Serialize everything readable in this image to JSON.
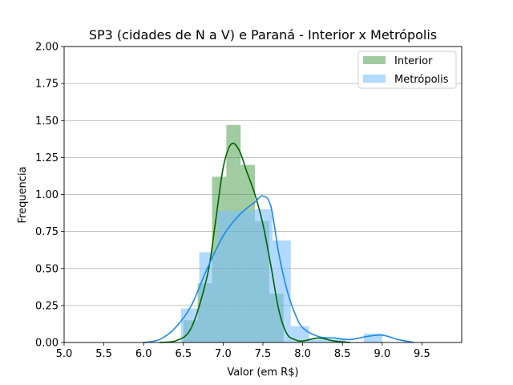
{
  "chart_data": {
    "type": "bar",
    "title": "SP3 (cidades de N a V) e Paraná - Interior x Metrópolis",
    "xlabel": "Valor (em R$)",
    "ylabel": "Frequencia",
    "xlim": [
      5.0,
      10.0
    ],
    "ylim": [
      0.0,
      2.0
    ],
    "xticks": [
      "5.0",
      "5.5",
      "6.0",
      "6.5",
      "7.0",
      "7.5",
      "8.0",
      "8.5",
      "9.0",
      "9.5"
    ],
    "yticks": [
      "0.00",
      "0.25",
      "0.50",
      "0.75",
      "1.00",
      "1.25",
      "1.50",
      "1.75",
      "2.00"
    ],
    "grid": "horizontal",
    "legend_position": "top-right",
    "series": [
      {
        "name": "Interior",
        "color": "#2e8b2e",
        "kde_color": "#006400",
        "histogram": [
          {
            "x0": 6.5,
            "x1": 6.68,
            "value": 0.15
          },
          {
            "x0": 6.68,
            "x1": 6.86,
            "value": 0.4
          },
          {
            "x0": 6.86,
            "x1": 7.04,
            "value": 1.12
          },
          {
            "x0": 7.04,
            "x1": 7.22,
            "value": 1.47
          },
          {
            "x0": 7.22,
            "x1": 7.4,
            "value": 1.2
          },
          {
            "x0": 7.4,
            "x1": 7.58,
            "value": 0.82
          },
          {
            "x0": 7.58,
            "x1": 7.76,
            "value": 0.33
          }
        ],
        "kde": [
          [
            6.2,
            0.0
          ],
          [
            6.4,
            0.01
          ],
          [
            6.6,
            0.1
          ],
          [
            6.8,
            0.45
          ],
          [
            6.9,
            0.8
          ],
          [
            7.0,
            1.18
          ],
          [
            7.1,
            1.34
          ],
          [
            7.2,
            1.3
          ],
          [
            7.3,
            1.15
          ],
          [
            7.4,
            1.0
          ],
          [
            7.5,
            0.8
          ],
          [
            7.6,
            0.52
          ],
          [
            7.7,
            0.22
          ],
          [
            7.8,
            0.06
          ],
          [
            7.9,
            0.02
          ],
          [
            8.0,
            0.01
          ],
          [
            8.2,
            0.03
          ],
          [
            8.4,
            0.01
          ],
          [
            8.6,
            0.0
          ]
        ]
      },
      {
        "name": "Metrópolis",
        "color": "#7fbfff",
        "kde_color": "#1e8ae8",
        "histogram": [
          {
            "x0": 6.47,
            "x1": 6.7,
            "value": 0.23
          },
          {
            "x0": 6.7,
            "x1": 6.93,
            "value": 0.61
          },
          {
            "x0": 6.93,
            "x1": 7.16,
            "value": 0.89
          },
          {
            "x0": 7.16,
            "x1": 7.39,
            "value": 0.89
          },
          {
            "x0": 7.39,
            "x1": 7.62,
            "value": 0.9
          },
          {
            "x0": 7.62,
            "x1": 7.85,
            "value": 0.69
          },
          {
            "x0": 7.85,
            "x1": 8.08,
            "value": 0.11
          },
          {
            "x0": 8.08,
            "x1": 8.31,
            "value": 0.02
          },
          {
            "x0": 8.31,
            "x1": 8.54,
            "value": 0.02
          },
          {
            "x0": 8.54,
            "x1": 8.77,
            "value": 0.0
          },
          {
            "x0": 8.77,
            "x1": 9.0,
            "value": 0.06
          }
        ],
        "kde": [
          [
            6.0,
            0.0
          ],
          [
            6.2,
            0.02
          ],
          [
            6.4,
            0.1
          ],
          [
            6.6,
            0.25
          ],
          [
            6.8,
            0.5
          ],
          [
            7.0,
            0.72
          ],
          [
            7.2,
            0.86
          ],
          [
            7.4,
            0.95
          ],
          [
            7.5,
            0.99
          ],
          [
            7.6,
            0.92
          ],
          [
            7.7,
            0.6
          ],
          [
            7.8,
            0.36
          ],
          [
            7.9,
            0.2
          ],
          [
            8.0,
            0.1
          ],
          [
            8.2,
            0.04
          ],
          [
            8.4,
            0.03
          ],
          [
            8.6,
            0.02
          ],
          [
            8.8,
            0.04
          ],
          [
            9.0,
            0.05
          ],
          [
            9.2,
            0.02
          ],
          [
            9.4,
            0.0
          ]
        ]
      }
    ]
  }
}
